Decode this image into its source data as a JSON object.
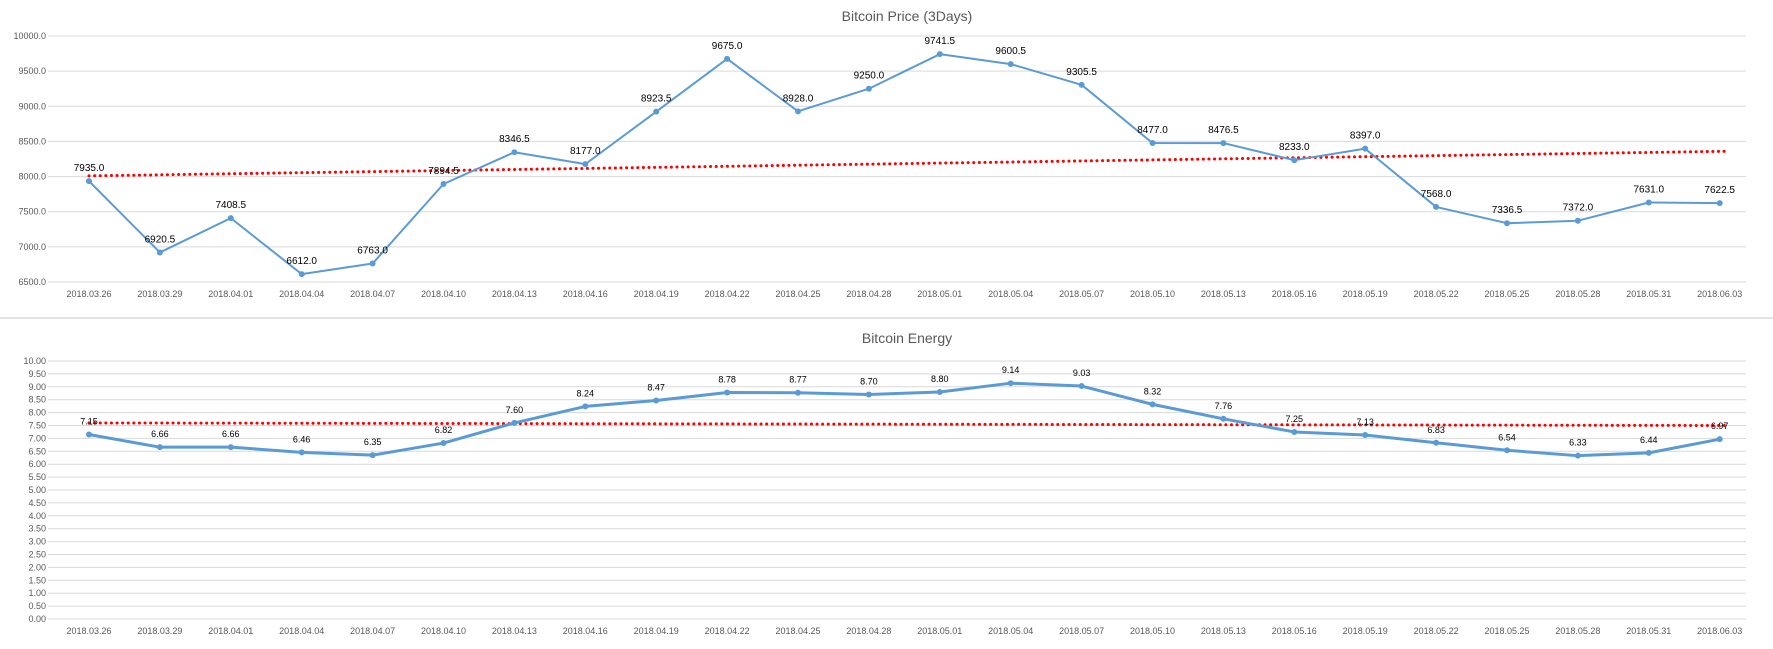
{
  "chart_data": [
    {
      "type": "line",
      "title": "Bitcoin Price (3Days)",
      "categories": [
        "2018.03.26",
        "2018.03.29",
        "2018.04.01",
        "2018.04.04",
        "2018.04.07",
        "2018.04.10",
        "2018.04.13",
        "2018.04.16",
        "2018.04.19",
        "2018.04.22",
        "2018.04.25",
        "2018.04.28",
        "2018.05.01",
        "2018.05.04",
        "2018.05.07",
        "2018.05.10",
        "2018.05.13",
        "2018.05.16",
        "2018.05.19",
        "2018.05.22",
        "2018.05.25",
        "2018.05.28",
        "2018.05.31",
        "2018.06.03"
      ],
      "series": [
        {
          "values": [
            7935.0,
            6920.5,
            7408.5,
            6612.0,
            6763.0,
            7894.5,
            8346.5,
            8177.0,
            8923.5,
            9675.0,
            8928.0,
            9250.0,
            9741.5,
            9600.5,
            9305.5,
            8477.0,
            8476.5,
            8233.0,
            8397.0,
            7568.0,
            7336.5,
            7372.0,
            7631.0,
            7622.5
          ],
          "labels": [
            "7935.0",
            "6920.5",
            "7408.5",
            "6612.0",
            "6763.0",
            "7894.5",
            "8346.5",
            "8177.0",
            "8923.5",
            "9675.0",
            "8928.0",
            "9250.0",
            "9741.5",
            "9600.5",
            "9305.5",
            "8477.0",
            "8476.5",
            "8233.0",
            "8397.0",
            "7568.0",
            "7336.5",
            "7372.0",
            "7631.0",
            "7622.5"
          ],
          "color": "#5b9bd5"
        }
      ],
      "trendline": {
        "start": 8010,
        "end": 8360,
        "color": "#ff0000",
        "style": "dotted"
      },
      "ylim": [
        6500,
        10000
      ],
      "yticks": [
        "6500.0",
        "7000.0",
        "7500.0",
        "8000.0",
        "8500.0",
        "9000.0",
        "9500.0",
        "10000.0"
      ],
      "grid": true,
      "xlabel": "",
      "ylabel": ""
    },
    {
      "type": "line",
      "title": "Bitcoin Energy",
      "categories": [
        "2018.03.26",
        "2018.03.29",
        "2018.04.01",
        "2018.04.04",
        "2018.04.07",
        "2018.04.10",
        "2018.04.13",
        "2018.04.16",
        "2018.04.19",
        "2018.04.22",
        "2018.04.25",
        "2018.04.28",
        "2018.05.01",
        "2018.05.04",
        "2018.05.07",
        "2018.05.10",
        "2018.05.13",
        "2018.05.16",
        "2018.05.19",
        "2018.05.22",
        "2018.05.25",
        "2018.05.28",
        "2018.05.31",
        "2018.06.03"
      ],
      "series": [
        {
          "values": [
            7.15,
            6.66,
            6.66,
            6.46,
            6.35,
            6.82,
            7.6,
            8.24,
            8.47,
            8.78,
            8.77,
            8.7,
            8.8,
            9.14,
            9.03,
            8.32,
            7.76,
            7.25,
            7.13,
            6.83,
            6.54,
            6.33,
            6.44,
            6.97
          ],
          "labels": [
            "7.15",
            "6.66",
            "6.66",
            "6.46",
            "6.35",
            "6.82",
            "7.60",
            "8.24",
            "8.47",
            "8.78",
            "8.77",
            "8.70",
            "8.80",
            "9.14",
            "9.03",
            "8.32",
            "7.76",
            "7.25",
            "7.13",
            "6.83",
            "6.54",
            "6.33",
            "6.44",
            "6.97"
          ],
          "color": "#5b9bd5"
        }
      ],
      "trendline": {
        "start": 7.6,
        "end": 7.5,
        "color": "#ff0000",
        "style": "dotted"
      },
      "ylim": [
        0,
        10
      ],
      "yticks": [
        "0.00",
        "0.50",
        "1.00",
        "1.50",
        "2.00",
        "2.50",
        "3.00",
        "3.50",
        "4.00",
        "4.50",
        "5.00",
        "5.50",
        "6.00",
        "6.50",
        "7.00",
        "7.50",
        "8.00",
        "8.50",
        "9.00",
        "9.50",
        "10.00"
      ],
      "grid": true,
      "xlabel": "",
      "ylabel": ""
    }
  ]
}
